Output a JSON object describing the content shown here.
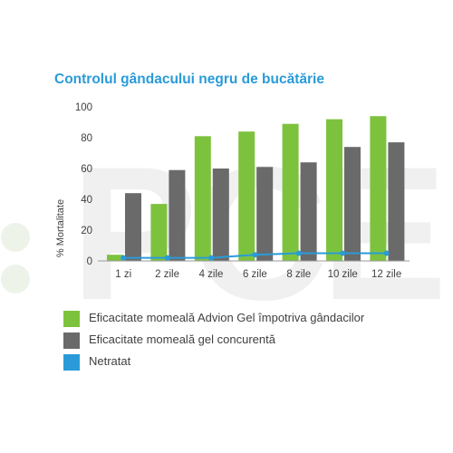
{
  "chart_data": {
    "type": "bar",
    "title": "Controlul gândacului negru de bucătărie",
    "xlabel": "",
    "ylabel": "% Mortalitate",
    "ylim": [
      0,
      100
    ],
    "yticks": [
      0,
      20,
      40,
      60,
      80,
      100
    ],
    "categories": [
      "1 zi",
      "2 zile",
      "4 zile",
      "6 zile",
      "8 zile",
      "10 zile",
      "12 zile"
    ],
    "series": [
      {
        "name": "Eficacitate momeală Advion Gel împotriva gândacilor",
        "type": "bar",
        "color": "#7dc23d",
        "values": [
          4,
          37,
          81,
          84,
          89,
          92,
          94
        ]
      },
      {
        "name": "Eficacitate momeală gel concurentă",
        "type": "bar",
        "color": "#6a6a6a",
        "values": [
          44,
          59,
          60,
          61,
          64,
          74,
          77
        ]
      },
      {
        "name": "Netratat",
        "type": "line",
        "color": "#2a9bd8",
        "values": [
          2,
          2,
          2,
          4,
          5,
          5,
          5
        ]
      }
    ],
    "grid": false,
    "legend_position": "bottom"
  },
  "watermark": {
    "text": "PCE",
    "color": "#efefef"
  }
}
